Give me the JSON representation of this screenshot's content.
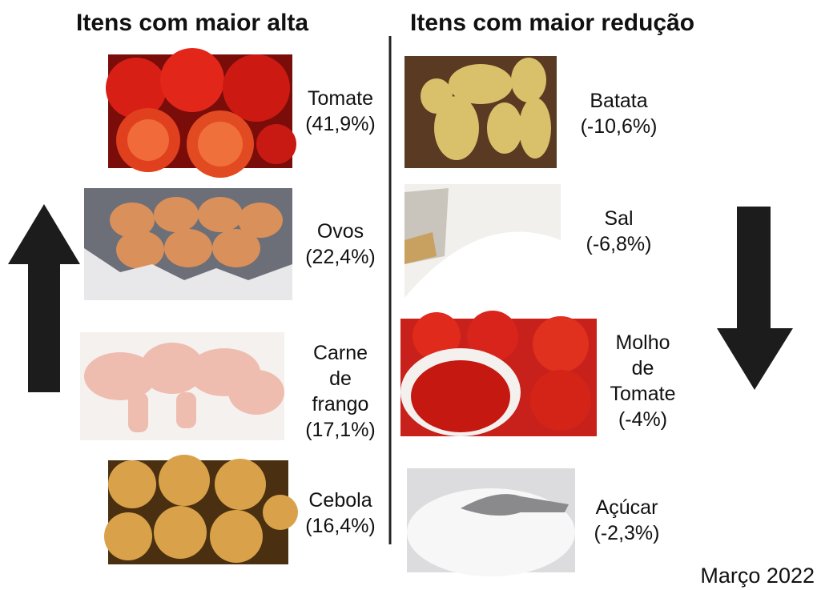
{
  "header": {
    "left_title": "Itens com maior alta",
    "right_title": "Itens com maior redução"
  },
  "increase": [
    {
      "name": "Tomate",
      "change": "(41,9%)"
    },
    {
      "name": "Ovos",
      "change": "(22,4%)"
    },
    {
      "name": "Carne de frango",
      "change": "(17,1%)"
    },
    {
      "name": "Cebola",
      "change": "(16,4%)"
    }
  ],
  "decrease": [
    {
      "name": "Batata",
      "change": "(-10,6%)"
    },
    {
      "name": "Sal",
      "change": "(-6,8%)"
    },
    {
      "name": "Molho de Tomate",
      "change": "(-4%)"
    },
    {
      "name": "Açúcar",
      "change": "(-2,3%)"
    }
  ],
  "footer": {
    "date": "Março 2022"
  }
}
